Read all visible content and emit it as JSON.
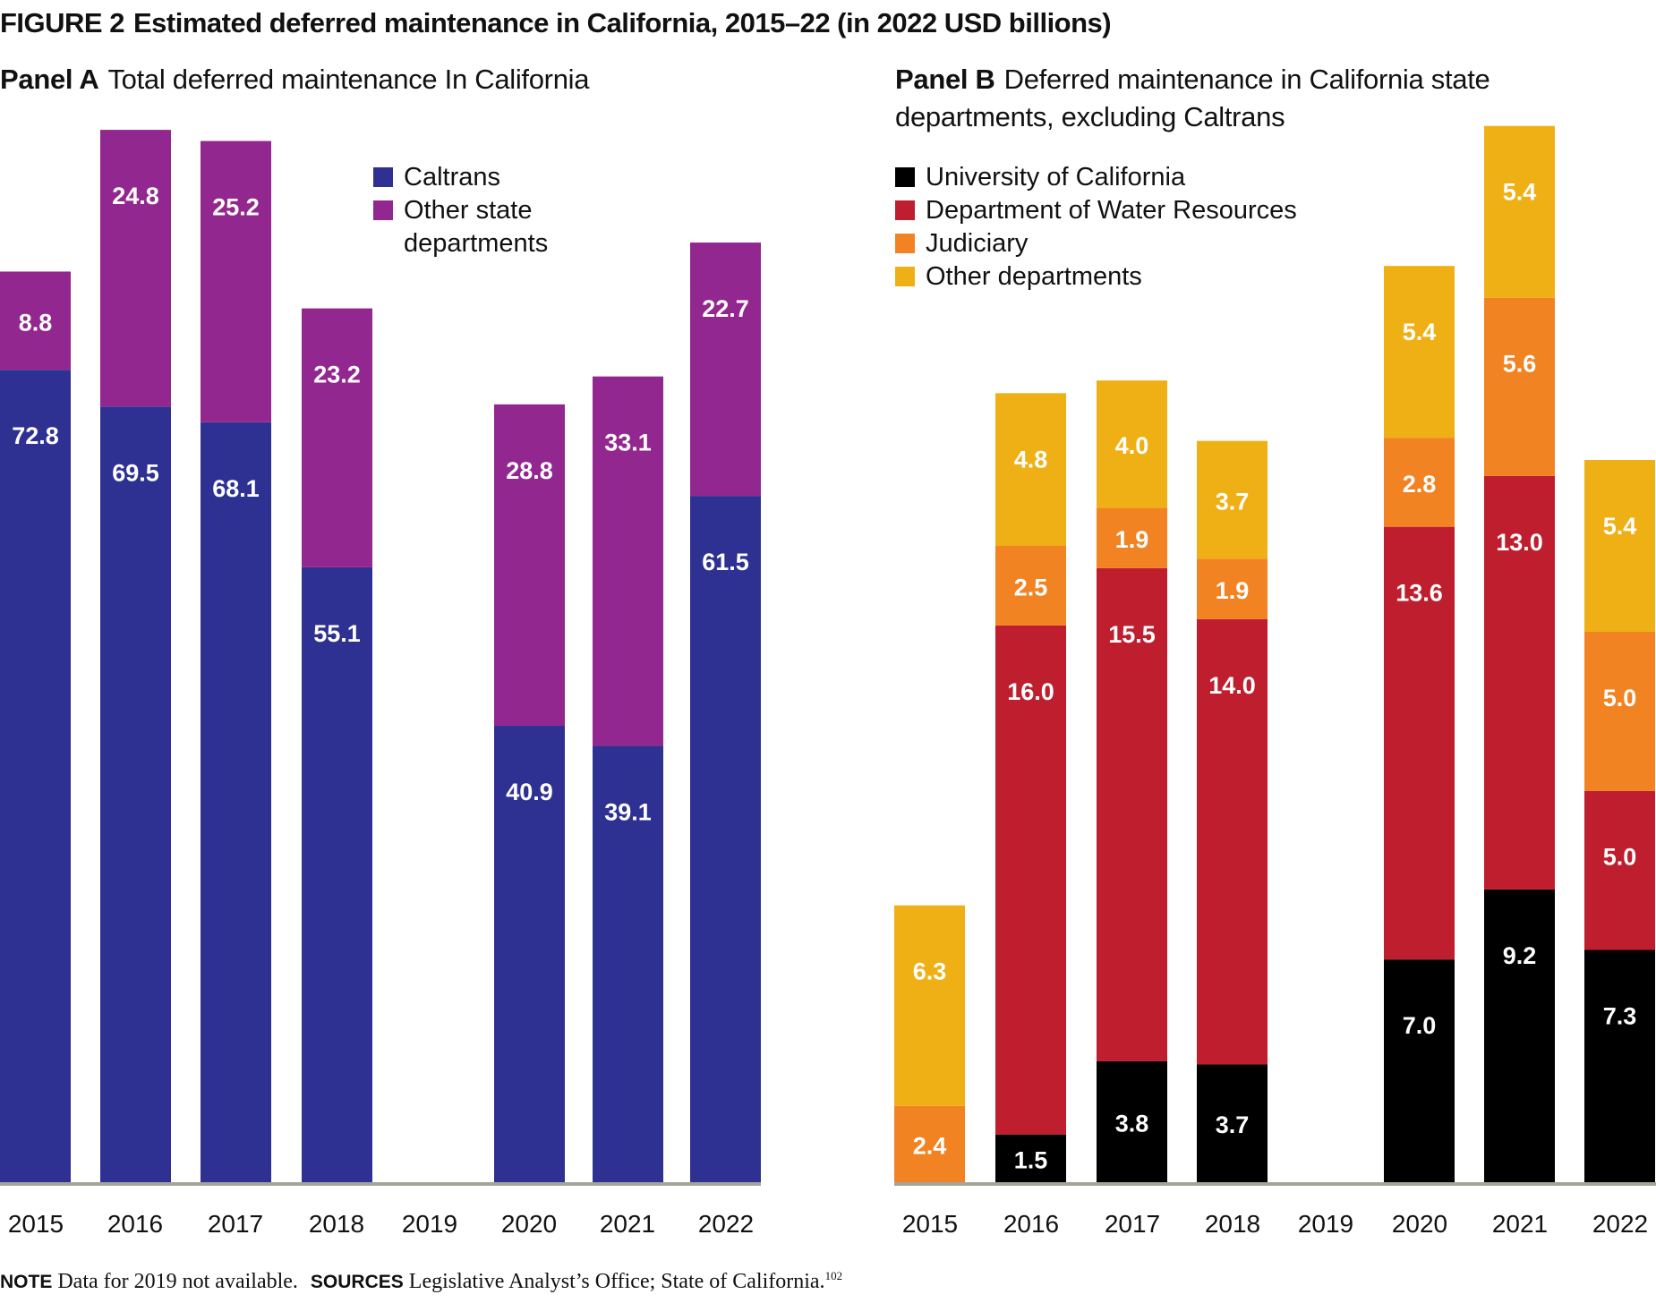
{
  "figure": {
    "label": "FIGURE 2",
    "title": "Estimated deferred maintenance in California, 2015–22 (in 2022 USD billions)"
  },
  "note": {
    "note_label": "NOTE",
    "note_text": "Data for 2019 not available.",
    "sources_label": "SOURCES",
    "sources_text": "Legislative Analyst’s Office; State of California.",
    "footnote_ref": "102"
  },
  "chart_data": [
    {
      "type": "bar",
      "stacked": true,
      "panel_label": "Panel A",
      "title": "Total deferred maintenance In California",
      "xlabel": "",
      "ylabel": "",
      "units": "2022 USD billions",
      "categories": [
        "2015",
        "2016",
        "2017",
        "2018",
        "2019",
        "2020",
        "2021",
        "2022"
      ],
      "series": [
        {
          "name": "Caltrans",
          "color": "#2e3192",
          "values": [
            72.8,
            69.5,
            68.1,
            55.1,
            null,
            40.9,
            39.1,
            61.5
          ]
        },
        {
          "name": "Other state departments",
          "color": "#92278f",
          "values": [
            8.8,
            24.8,
            25.2,
            23.2,
            null,
            28.8,
            33.1,
            22.7
          ]
        }
      ],
      "ylim": [
        0,
        95
      ],
      "grid": false,
      "axis_visible": false,
      "data_labels": true,
      "legend_position": "top-right"
    },
    {
      "type": "bar",
      "stacked": true,
      "panel_label": "Panel B",
      "title": "Deferred maintenance in California state departments, excluding Caltrans",
      "xlabel": "",
      "ylabel": "",
      "units": "2022 USD billions",
      "categories": [
        "2015",
        "2016",
        "2017",
        "2018",
        "2019",
        "2020",
        "2021",
        "2022"
      ],
      "series": [
        {
          "name": "University of California",
          "color": "#000000",
          "values": [
            null,
            1.5,
            3.8,
            3.7,
            null,
            7.0,
            9.2,
            7.3
          ]
        },
        {
          "name": "Department of Water Resources",
          "color": "#be1e2d",
          "values": [
            null,
            16.0,
            15.5,
            14.0,
            null,
            13.6,
            13.0,
            5.0
          ]
        },
        {
          "name": "Judiciary",
          "color": "#f28322",
          "values": [
            2.4,
            2.5,
            1.9,
            1.9,
            null,
            2.8,
            5.6,
            5.0
          ]
        },
        {
          "name": "Other departments",
          "color": "#efb016",
          "values": [
            6.3,
            4.8,
            4.0,
            3.7,
            null,
            5.4,
            5.4,
            5.4
          ]
        }
      ],
      "ylim": [
        0,
        34
      ],
      "grid": false,
      "axis_visible": false,
      "data_labels": true,
      "legend_position": "top-left"
    }
  ]
}
